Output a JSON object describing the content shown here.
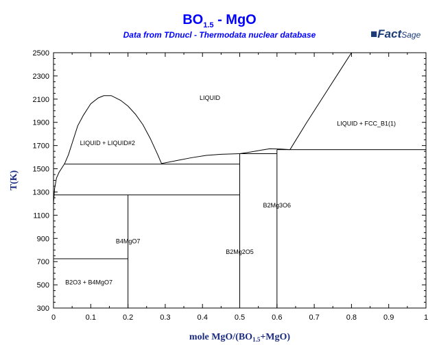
{
  "header": {
    "title_main": "BO",
    "title_sub": "1.5",
    "title_rest": " - MgO",
    "subtitle": "Data from TDnucl - Thermodata nuclear database",
    "logo": "FactSage"
  },
  "chart_data": {
    "type": "line",
    "title": "BO1.5 - MgO",
    "xlabel": "mole MgO/(BO1.5+MgO)",
    "ylabel": "T(K)",
    "xlim": [
      0,
      1
    ],
    "ylim": [
      300,
      2500
    ],
    "xticks": [
      "0",
      "0.1",
      "0.2",
      "0.3",
      "0.4",
      "0.5",
      "0.6",
      "0.7",
      "0.8",
      "0.9",
      "1"
    ],
    "yticks": [
      "300",
      "500",
      "700",
      "900",
      "1100",
      "1300",
      "1500",
      "1700",
      "1900",
      "2100",
      "2300",
      "2500"
    ],
    "series": [
      {
        "name": "miscibility-gap",
        "points": [
          [
            0.03,
            1545
          ],
          [
            0.04,
            1620
          ],
          [
            0.05,
            1720
          ],
          [
            0.065,
            1870
          ],
          [
            0.08,
            1960
          ],
          [
            0.1,
            2060
          ],
          [
            0.12,
            2110
          ],
          [
            0.135,
            2130
          ],
          [
            0.155,
            2130
          ],
          [
            0.18,
            2090
          ],
          [
            0.2,
            2040
          ],
          [
            0.22,
            1970
          ],
          [
            0.24,
            1880
          ],
          [
            0.26,
            1760
          ],
          [
            0.28,
            1620
          ],
          [
            0.29,
            1545
          ]
        ]
      },
      {
        "name": "left-liquidus",
        "points": [
          [
            0,
            1200
          ],
          [
            0.003,
            1330
          ],
          [
            0.008,
            1420
          ],
          [
            0.015,
            1470
          ],
          [
            0.025,
            1520
          ],
          [
            0.03,
            1545
          ]
        ]
      },
      {
        "name": "liquidus-mid",
        "points": [
          [
            0.29,
            1545
          ],
          [
            0.33,
            1570
          ],
          [
            0.37,
            1595
          ],
          [
            0.41,
            1615
          ],
          [
            0.45,
            1625
          ],
          [
            0.5,
            1630
          ]
        ]
      },
      {
        "name": "liquidus-b2mg3o6",
        "points": [
          [
            0.5,
            1630
          ],
          [
            0.53,
            1645
          ],
          [
            0.56,
            1662
          ],
          [
            0.58,
            1672
          ],
          [
            0.61,
            1670
          ],
          [
            0.635,
            1665
          ]
        ]
      },
      {
        "name": "liquidus-mgo",
        "points": [
          [
            0.635,
            1665
          ],
          [
            0.68,
            1900
          ],
          [
            0.73,
            2150
          ],
          [
            0.77,
            2350
          ],
          [
            0.8,
            2500
          ]
        ]
      },
      {
        "name": "eutectic-1540",
        "points": [
          [
            0.03,
            1540
          ],
          [
            0.5,
            1540
          ]
        ]
      },
      {
        "name": "transition-1275",
        "points": [
          [
            0,
            1275
          ],
          [
            0.5,
            1275
          ]
        ]
      },
      {
        "name": "transition-725",
        "points": [
          [
            0,
            725
          ],
          [
            0.2,
            725
          ]
        ]
      },
      {
        "name": "eutectic-1630",
        "points": [
          [
            0.5,
            1630
          ],
          [
            0.6,
            1630
          ]
        ]
      },
      {
        "name": "eutectic-1665",
        "points": [
          [
            0.6,
            1665
          ],
          [
            1,
            1665
          ]
        ]
      },
      {
        "name": "b4mgo7",
        "points": [
          [
            0.2,
            300
          ],
          [
            0.2,
            1275
          ]
        ]
      },
      {
        "name": "b2mg2o5",
        "points": [
          [
            0.5,
            300
          ],
          [
            0.5,
            1630
          ]
        ]
      },
      {
        "name": "b2mg3o6",
        "points": [
          [
            0.6,
            300
          ],
          [
            0.6,
            1665
          ]
        ]
      }
    ],
    "annotations": [
      {
        "text": "LIQUID",
        "x": 0.42,
        "y": 2110
      },
      {
        "text": "LIQUID + LIQUID#2",
        "x": 0.145,
        "y": 1720
      },
      {
        "text": "LIQUID + FCC_B1(1)",
        "x": 0.84,
        "y": 1890
      },
      {
        "text": "B2Mg3O6",
        "x": 0.6,
        "y": 1185
      },
      {
        "text": "B4MgO7",
        "x": 0.2,
        "y": 875
      },
      {
        "text": "B2Mg2O5",
        "x": 0.5,
        "y": 785
      },
      {
        "text": "B2O3 + B4MgO7",
        "x": 0.095,
        "y": 520
      }
    ]
  }
}
